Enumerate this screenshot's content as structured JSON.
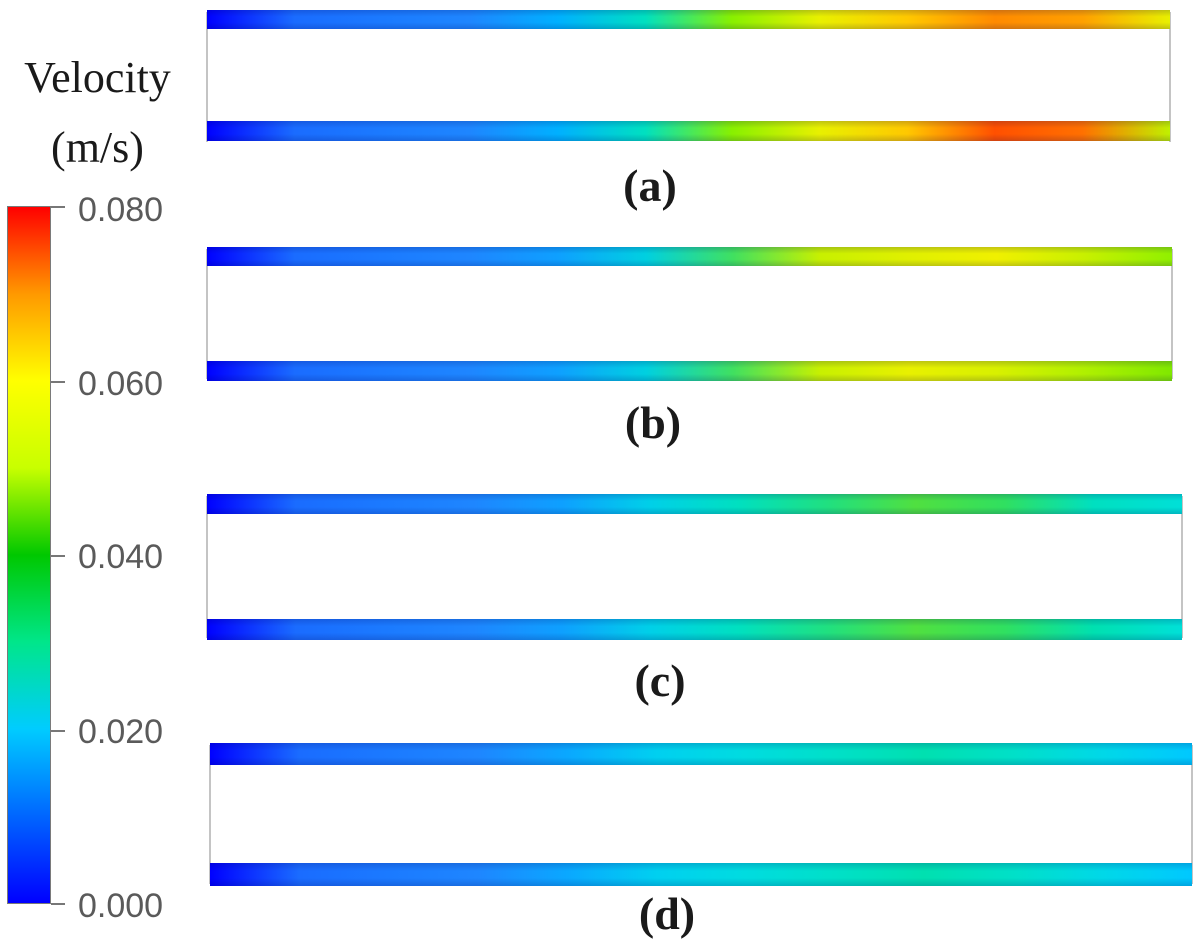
{
  "legend": {
    "title_line1": "Velocity",
    "title_line2": "(m/s)",
    "ticks": [
      "0.080",
      "0.060",
      "0.040",
      "0.020",
      "0.000"
    ],
    "colormap": [
      "#0000ff",
      "#0066ff",
      "#00ccff",
      "#00e68a",
      "#00c800",
      "#c8ff00",
      "#ffff00",
      "#ff9900",
      "#ff0000"
    ]
  },
  "panels": [
    {
      "label": "(a)",
      "top_channel": [
        "#0000ff",
        "#1a6cff",
        "#1b7aff",
        "#1e86ff",
        "#00b0ff",
        "#00e0c0",
        "#88f000",
        "#e8f000",
        "#ffc800",
        "#ff8a00",
        "#ffa000",
        "#e8f000"
      ],
      "bottom_channel": [
        "#0000ff",
        "#1a6cff",
        "#1b7aff",
        "#1e86ff",
        "#00b0ff",
        "#00e0c0",
        "#88f000",
        "#e8f000",
        "#ffc800",
        "#ff5000",
        "#ff7000",
        "#c0f000"
      ]
    },
    {
      "label": "(b)",
      "top_channel": [
        "#0000ff",
        "#1a6cff",
        "#1b7aff",
        "#1e86ff",
        "#0ea0ff",
        "#00d0e0",
        "#40e060",
        "#c8f000",
        "#e0f000",
        "#f0f000",
        "#c8f000",
        "#90f000"
      ],
      "bottom_channel": [
        "#0000ff",
        "#1a6cff",
        "#1b7aff",
        "#1e86ff",
        "#0ea0ff",
        "#00d0e0",
        "#40e060",
        "#c8f000",
        "#e8f000",
        "#d8f000",
        "#b0f000",
        "#80e800"
      ]
    },
    {
      "label": "(c)",
      "top_channel": [
        "#0000ff",
        "#1a6cff",
        "#1b7aff",
        "#1e86ff",
        "#0ea0ff",
        "#00d0e8",
        "#00e0c0",
        "#20e080",
        "#50e040",
        "#30e060",
        "#00e0c0",
        "#00e0d8"
      ],
      "bottom_channel": [
        "#0000ff",
        "#1a6cff",
        "#1b7aff",
        "#1e86ff",
        "#0ea0ff",
        "#00d0e8",
        "#00e0c0",
        "#20e080",
        "#50e040",
        "#30e060",
        "#00e0b0",
        "#00e0d8"
      ]
    },
    {
      "label": "(d)",
      "top_channel": [
        "#0000ff",
        "#1a6cff",
        "#1b7aff",
        "#1e86ff",
        "#0aa8ff",
        "#00d0f0",
        "#00dce0",
        "#00e0c8",
        "#00e0b0",
        "#00e0c8",
        "#00d8e8",
        "#00c8ff"
      ],
      "bottom_channel": [
        "#0000ff",
        "#1a6cff",
        "#1b7aff",
        "#1e86ff",
        "#0aa8ff",
        "#00d0f0",
        "#00dce0",
        "#00e0c8",
        "#00e0b0",
        "#00e0c8",
        "#00d8e8",
        "#00c8ff"
      ]
    }
  ]
}
